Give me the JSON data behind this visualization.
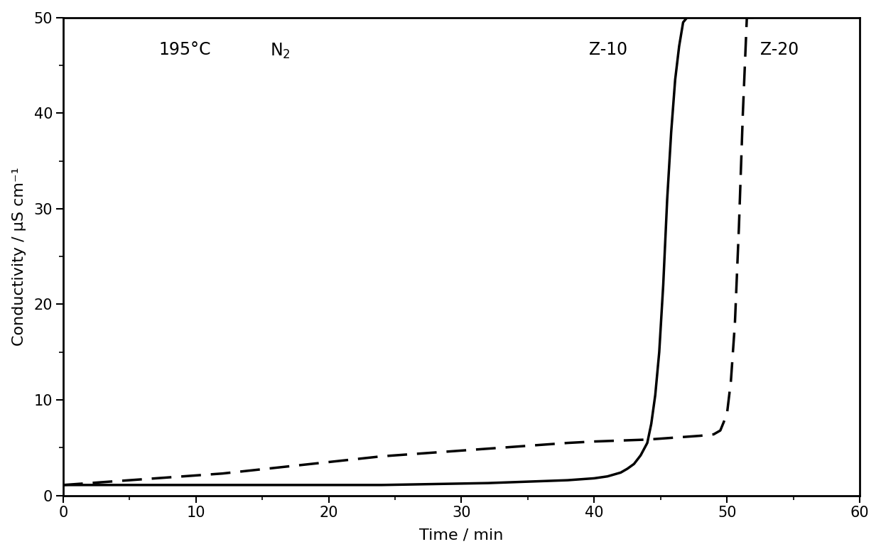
{
  "title": "",
  "xlabel": "Time / min",
  "ylabel": "Conductivity / μS cm⁻¹",
  "xlim": [
    0,
    60
  ],
  "ylim": [
    0,
    50
  ],
  "xticks": [
    0,
    10,
    20,
    30,
    40,
    50,
    60
  ],
  "yticks": [
    0,
    10,
    20,
    30,
    40,
    50
  ],
  "annotation_temp": "195°C",
  "annotation_gas": "N$_2$",
  "annotation_z10": "Z-10",
  "annotation_z20": "Z-20",
  "line_color": "#000000",
  "background_color": "#ffffff",
  "z10_x": [
    0,
    2,
    4,
    6,
    8,
    10,
    12,
    14,
    16,
    18,
    20,
    22,
    24,
    26,
    28,
    30,
    32,
    34,
    36,
    38,
    40,
    41,
    42,
    42.5,
    43,
    43.5,
    44,
    44.3,
    44.6,
    44.9,
    45.2,
    45.5,
    45.8,
    46.1,
    46.4,
    46.7,
    47.0
  ],
  "z10_y": [
    1.1,
    1.1,
    1.1,
    1.1,
    1.1,
    1.1,
    1.1,
    1.1,
    1.1,
    1.1,
    1.1,
    1.1,
    1.1,
    1.15,
    1.2,
    1.25,
    1.3,
    1.4,
    1.5,
    1.6,
    1.8,
    2.0,
    2.4,
    2.8,
    3.3,
    4.2,
    5.5,
    7.5,
    10.5,
    15.0,
    22.0,
    31.0,
    38.0,
    43.5,
    47.0,
    49.5,
    50.0
  ],
  "z20_x": [
    0,
    2,
    4,
    6,
    8,
    10,
    12,
    14,
    16,
    18,
    20,
    22,
    24,
    26,
    28,
    30,
    32,
    34,
    36,
    38,
    40,
    42,
    44,
    45,
    46,
    47,
    48,
    49,
    49.5,
    50.0,
    50.3,
    50.6,
    50.9,
    51.2,
    51.5,
    52.0
  ],
  "z20_y": [
    1.1,
    1.3,
    1.5,
    1.7,
    1.9,
    2.1,
    2.3,
    2.6,
    2.9,
    3.2,
    3.5,
    3.8,
    4.1,
    4.3,
    4.5,
    4.7,
    4.9,
    5.1,
    5.3,
    5.5,
    5.65,
    5.75,
    5.85,
    5.95,
    6.05,
    6.15,
    6.25,
    6.4,
    6.8,
    8.5,
    12.0,
    18.0,
    28.0,
    40.0,
    50.0,
    50.0
  ],
  "fontsize_labels": 16,
  "fontsize_ticks": 15,
  "fontsize_annotations": 17,
  "linewidth_solid": 2.5,
  "linewidth_dashed": 2.5,
  "spine_linewidth": 2.0
}
